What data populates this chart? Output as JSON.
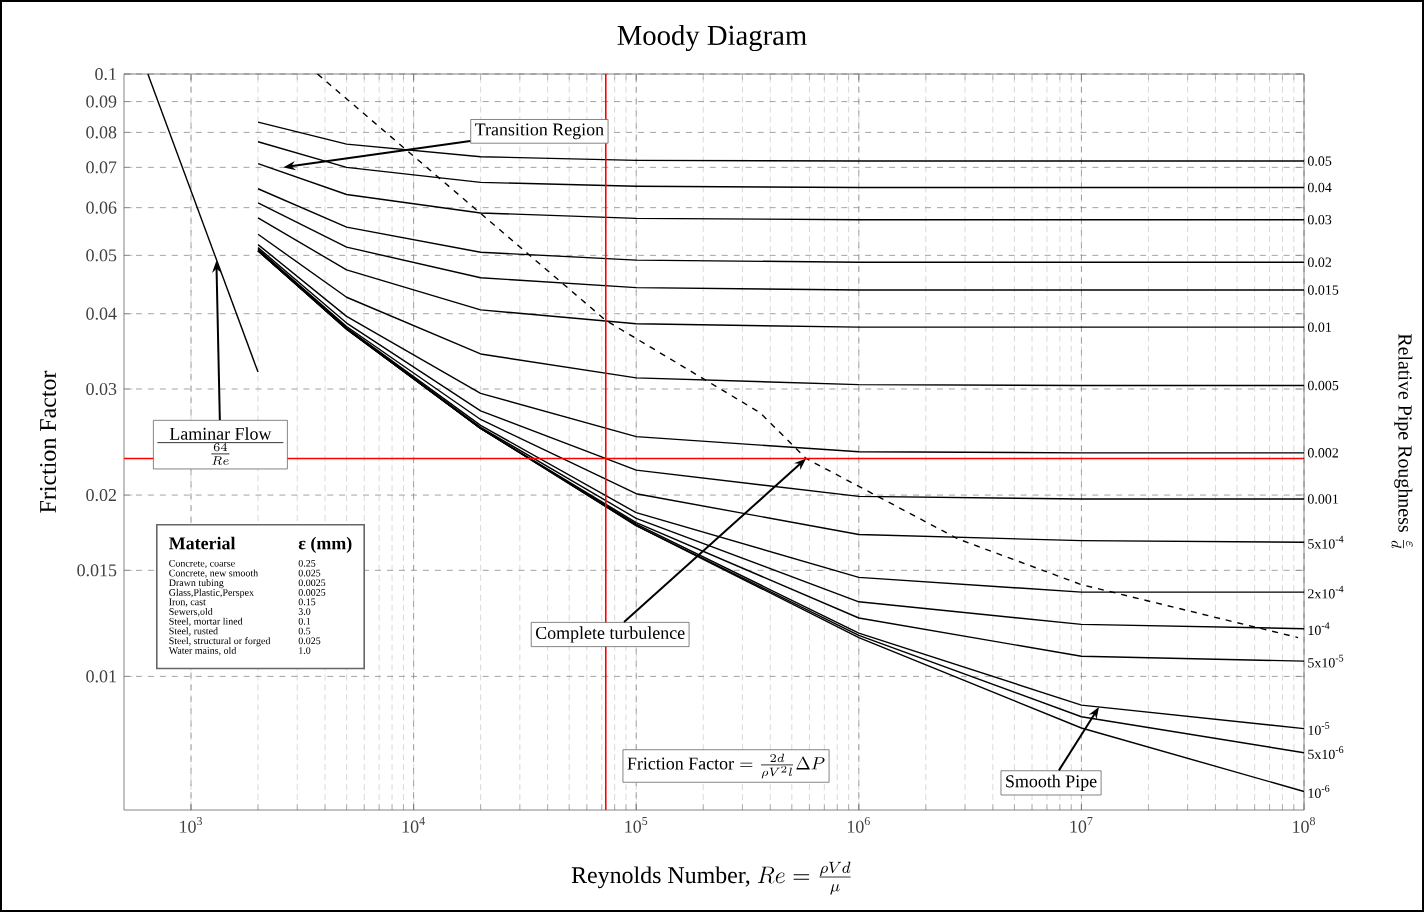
{
  "chart_data": {
    "type": "line",
    "title": "Moody Diagram",
    "xlabel": "\\mbox{Reynolds Number, } Re = \\frac{\\rho V d}{\\mu}",
    "ylabel": "Friction Factor",
    "y2label": "\\mbox{Relative Pipe Roughness } \\frac{\\varepsilon}{d}",
    "log": "xy",
    "grid": true,
    "marker": "none",
    "line_style": "solid",
    "xlim": [
      500,
      100000000
    ],
    "ylim": [
      0.006,
      0.1
    ],
    "xticks": [
      {
        "value": 1000,
        "label": "10$^{3}$"
      },
      {
        "value": 10000,
        "label": "10$^{4}$"
      },
      {
        "value": 100000,
        "label": "10$^{5}$"
      },
      {
        "value": 1000000,
        "label": "10$^{6}$"
      },
      {
        "value": 10000000,
        "label": "10$^{7}$"
      },
      {
        "value": 100000000,
        "label": "10$^{8}$"
      }
    ],
    "yticks": [
      0.01,
      0.015,
      0.02,
      0.03,
      0.04,
      0.05,
      0.06,
      0.07,
      0.08,
      0.09,
      0.1
    ],
    "x": [
      2000,
      5000,
      20000,
      100000,
      1000000,
      10000000,
      100000000
    ],
    "series": [
      {
        "name": "0.05",
        "color": "#000000",
        "values": [
          0.0832,
          0.0765,
          0.0729,
          0.0719,
          0.0717,
          0.0717,
          0.0717
        ]
      },
      {
        "name": "0.04",
        "color": "#000000",
        "values": [
          0.0772,
          0.07,
          0.0661,
          0.0651,
          0.0648,
          0.0648,
          0.0648
        ]
      },
      {
        "name": "0.03",
        "color": "#000000",
        "values": [
          0.071,
          0.0631,
          0.0588,
          0.0576,
          0.0573,
          0.0573,
          0.0573
        ]
      },
      {
        "name": "0.02",
        "color": "#000000",
        "values": [
          0.0645,
          0.0557,
          0.0506,
          0.0491,
          0.0487,
          0.0487,
          0.0487
        ]
      },
      {
        "name": "0.015",
        "color": "#000000",
        "values": [
          0.0611,
          0.0516,
          0.0459,
          0.0442,
          0.0438,
          0.0438,
          0.0438
        ]
      },
      {
        "name": "0.01",
        "color": "#000000",
        "values": [
          0.0577,
          0.0473,
          0.0406,
          0.0385,
          0.038,
          0.038,
          0.038
        ]
      },
      {
        "name": "0.005",
        "color": "#000000",
        "values": [
          0.0542,
          0.0426,
          0.0343,
          0.0313,
          0.0305,
          0.0304,
          0.0304
        ]
      },
      {
        "name": "0.002",
        "color": "#000000",
        "values": [
          0.0521,
          0.0396,
          0.0295,
          0.025,
          0.0236,
          0.0235,
          0.0235
        ]
      },
      {
        "name": "0.001",
        "color": "#000000",
        "values": [
          0.0515,
          0.0386,
          0.0276,
          0.022,
          0.0199,
          0.0197,
          0.0197
        ]
      },
      {
        "name": "5x10$^{-4}$",
        "color": "#000000",
        "values": [
          0.0512,
          0.0381,
          0.0267,
          0.0201,
          0.0172,
          0.0168,
          0.0167
        ]
      },
      {
        "name": "2x10$^{-4}$",
        "color": "#000000",
        "values": [
          0.051,
          0.0379,
          0.0261,
          0.0187,
          0.0146,
          0.0138,
          0.0138
        ]
      },
      {
        "name": "10$^{-4}$",
        "color": "#000000",
        "values": [
          0.0509,
          0.0378,
          0.0259,
          0.0183,
          0.0133,
          0.0122,
          0.012
        ]
      },
      {
        "name": "5x10$^{-5}$",
        "color": "#000000",
        "values": [
          0.0509,
          0.0378,
          0.0258,
          0.018,
          0.0125,
          0.0108,
          0.0106
        ]
      },
      {
        "name": "10$^{-5}$",
        "color": "#000000",
        "values": [
          0.0509,
          0.0377,
          0.0258,
          0.0179,
          0.0118,
          0.00896,
          0.00819
        ]
      },
      {
        "name": "5x10$^{-6}$",
        "color": "#000000",
        "values": [
          0.0509,
          0.0377,
          0.0258,
          0.0178,
          0.0117,
          0.00857,
          0.00747
        ]
      },
      {
        "name": "10$^{-6}$",
        "color": "#000000",
        "values": [
          0.0509,
          0.0377,
          0.0258,
          0.0178,
          0.0116,
          0.00821,
          0.00644
        ]
      },
      {
        "color": "#000000",
        "x": [
          640,
          2000
        ],
        "values": [
          0.1,
          0.032
        ]
      },
      {
        "color": "#000000",
        "line_style": "dashed",
        "x": [
          3700,
          73000,
          360000,
          580000,
          2800000,
          10000000,
          94000000
        ],
        "values": [
          0.1,
          0.039,
          0.0274,
          0.023,
          0.0169,
          0.0142,
          0.0116
        ]
      }
    ],
    "ref_lines": [
      {
        "axis": "x",
        "value": 73000,
        "color": "#ff0000"
      },
      {
        "axis": "y",
        "value": 0.023,
        "color": "#ff0000"
      }
    ],
    "annotations": [
      {
        "text": "Transition Region",
        "x": 2600,
        "y": 0.07
      },
      {
        "text": "Laminar Flow",
        "x": 1300,
        "y": 0.049
      },
      "\\frac{64}{Re}",
      {
        "text": "Complete turbulence",
        "x": 580000,
        "y": 0.023
      },
      "\\mbox{Friction Factor} = \\frac{2d}{\\rho V^2 l}\\Delta P",
      {
        "text": "Smooth Pipe",
        "x": 12000000,
        "y": 0.0089
      },
      "Material",
      "ε (mm)",
      "Concrete, coarse",
      "0.25",
      "Concrete, new smooth",
      "0.025",
      "Drawn tubing",
      "0.0025",
      "Glass,Plastic,Perspex",
      "0.0025",
      "Iron, cast",
      "0.15",
      "Sewers,old",
      "3.0",
      "Steel, mortar lined",
      "0.1",
      "Steel, rusted",
      "0.5",
      "Steel, structural or forged",
      "0.025",
      "Water mains, old",
      "1.0"
    ]
  }
}
